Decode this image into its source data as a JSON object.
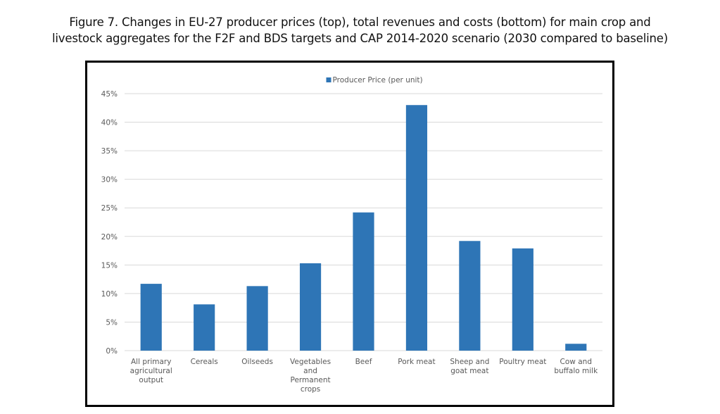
{
  "figure": {
    "title_lines": [
      "Figure 7. Changes in EU-27 producer prices (top), total revenues and costs (bottom) for main crop and",
      "livestock aggregates for the F2F and BDS targets and CAP 2014-2020 scenario (2030 compared to baseline)"
    ]
  },
  "chart_data": {
    "type": "bar",
    "title": "",
    "xlabel": "",
    "ylabel": "",
    "categories": [
      [
        "All primary",
        "agricultural",
        "output"
      ],
      [
        "Cereals"
      ],
      [
        "Oilseeds"
      ],
      [
        "Vegetables",
        "and",
        "Permanent",
        "crops"
      ],
      [
        "Beef"
      ],
      [
        "Pork meat"
      ],
      [
        "Sheep and",
        "goat meat"
      ],
      [
        "Poultry meat"
      ],
      [
        "Cow and",
        "buffalo milk"
      ]
    ],
    "series": [
      {
        "name": "Producer Price (per unit)",
        "color": "#2E75B6",
        "values": [
          11.7,
          8.1,
          11.3,
          15.3,
          24.2,
          43.0,
          19.2,
          17.9,
          1.2
        ]
      }
    ],
    "ylim": [
      0,
      45
    ],
    "yticks": [
      0,
      5,
      10,
      15,
      20,
      25,
      30,
      35,
      40,
      45
    ],
    "ytick_format": "percent",
    "grid": true,
    "legend_position": "top-center"
  }
}
